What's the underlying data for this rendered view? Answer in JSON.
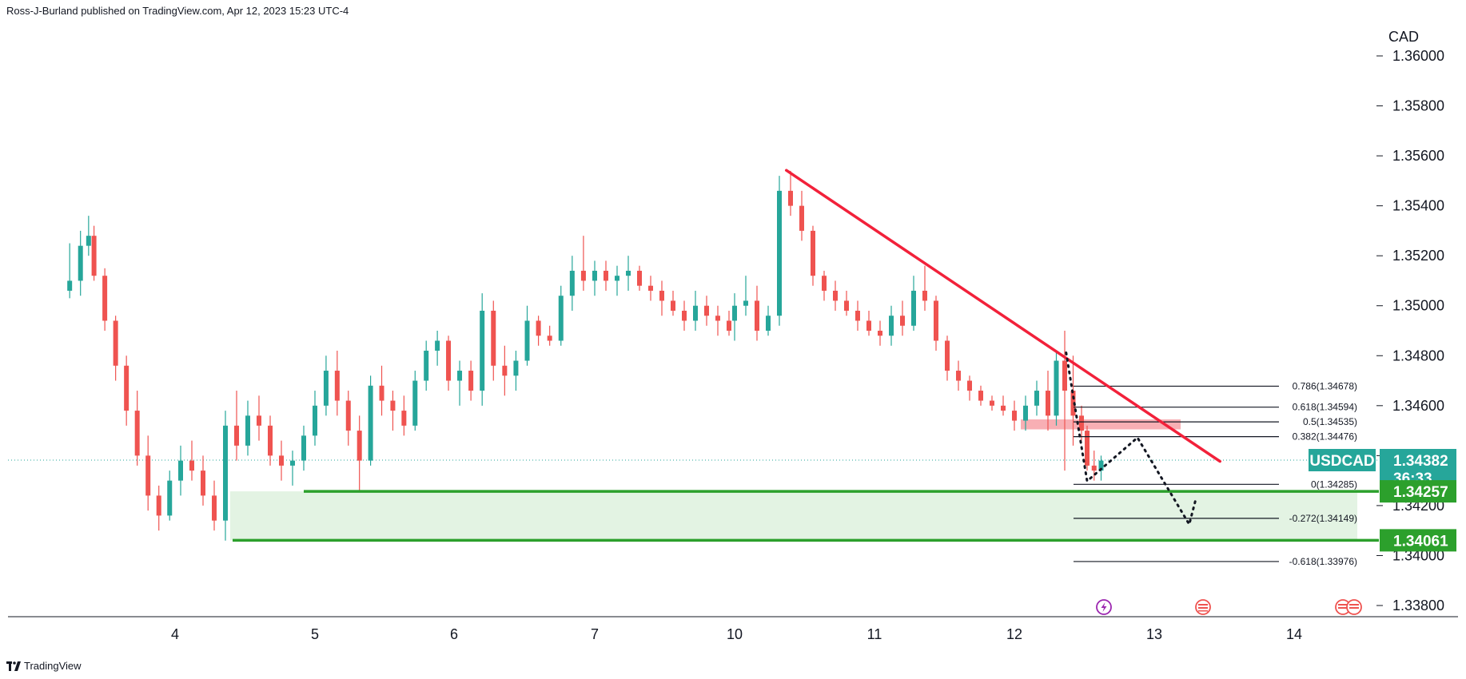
{
  "header": {
    "publisher_text": "Ross-J-Burland published on TradingView.com, Apr 12, 2023 15:23 UTC-4"
  },
  "footer": {
    "brand": "TradingView"
  },
  "colors": {
    "up": "#26a69a",
    "down": "#ef5350",
    "trendline": "#f2213a",
    "support": "#2ca02c",
    "zone": "#e3f3e3",
    "supply": "#f7a1a7"
  },
  "chart_data": {
    "type": "candlestick",
    "symbol_label": "USDCAD",
    "currency_label": "CAD",
    "y_ticks": [
      "1.36000",
      "1.35800",
      "1.35600",
      "1.35400",
      "1.35200",
      "1.35000",
      "1.34800",
      "1.34600",
      "1.34400",
      "1.34200",
      "1.34000",
      "1.33800"
    ],
    "x_ticks": [
      {
        "label": "4",
        "day": 4
      },
      {
        "label": "5",
        "day": 5
      },
      {
        "label": "6",
        "day": 6
      },
      {
        "label": "7",
        "day": 7
      },
      {
        "label": "10",
        "day": 10
      },
      {
        "label": "11",
        "day": 11
      },
      {
        "label": "12",
        "day": 12
      },
      {
        "label": "13",
        "day": 13
      },
      {
        "label": "14",
        "day": 14
      }
    ],
    "ylim": [
      1.337,
      1.3614
    ],
    "price_badges": [
      {
        "label": "USDCAD",
        "value": "1.34382",
        "countdown": "36:33",
        "price": 1.34382
      },
      {
        "label": "",
        "value": "1.34257",
        "price": 1.34257
      },
      {
        "label": "",
        "value": "1.34061",
        "price": 1.34061
      }
    ],
    "fib_levels": [
      {
        "label": "0.786(1.34678)",
        "price": 1.34678
      },
      {
        "label": "0.618(1.34594)",
        "price": 1.34594
      },
      {
        "label": "0.5(1.34535)",
        "price": 1.34535
      },
      {
        "label": "0.382(1.34476)",
        "price": 1.34476
      },
      {
        "label": "0(1.34285)",
        "price": 1.34285
      },
      {
        "label": "-0.272(1.34149)",
        "price": 1.34149
      },
      {
        "label": "-0.618(1.33976)",
        "price": 1.33976
      }
    ],
    "support_levels": [
      1.34257,
      1.34061
    ],
    "trendline": {
      "start": {
        "day": 10.37,
        "price": 1.35542
      },
      "end": {
        "day": 13.47,
        "price": 1.34377
      }
    },
    "projection": [
      {
        "day": 12.37,
        "price": 1.34812
      },
      {
        "day": 12.52,
        "price": 1.34298
      },
      {
        "day": 12.88,
        "price": 1.34472
      },
      {
        "day": 13.25,
        "price": 1.34125
      },
      {
        "day": 13.3,
        "price": 1.34232
      }
    ],
    "candles": [
      {
        "day": 3.22,
        "o": 1.3506,
        "h": 1.3525,
        "l": 1.3503,
        "c": 1.351
      },
      {
        "day": 3.3,
        "o": 1.351,
        "h": 1.353,
        "l": 1.3504,
        "c": 1.3524
      },
      {
        "day": 3.36,
        "o": 1.3524,
        "h": 1.3536,
        "l": 1.352,
        "c": 1.3528
      },
      {
        "day": 3.4,
        "o": 1.3528,
        "h": 1.3532,
        "l": 1.351,
        "c": 1.3512
      },
      {
        "day": 3.48,
        "o": 1.3512,
        "h": 1.3515,
        "l": 1.349,
        "c": 1.3494
      },
      {
        "day": 3.56,
        "o": 1.3494,
        "h": 1.3496,
        "l": 1.347,
        "c": 1.3476
      },
      {
        "day": 3.64,
        "o": 1.3476,
        "h": 1.348,
        "l": 1.3452,
        "c": 1.3458
      },
      {
        "day": 3.72,
        "o": 1.3458,
        "h": 1.3466,
        "l": 1.3436,
        "c": 1.344
      },
      {
        "day": 3.8,
        "o": 1.344,
        "h": 1.3448,
        "l": 1.3418,
        "c": 1.3424
      },
      {
        "day": 3.88,
        "o": 1.3424,
        "h": 1.3428,
        "l": 1.341,
        "c": 1.3416
      },
      {
        "day": 3.96,
        "o": 1.3416,
        "h": 1.3434,
        "l": 1.3414,
        "c": 1.343
      },
      {
        "day": 4.04,
        "o": 1.343,
        "h": 1.3444,
        "l": 1.3424,
        "c": 1.3438
      },
      {
        "day": 4.12,
        "o": 1.3438,
        "h": 1.3446,
        "l": 1.343,
        "c": 1.3434
      },
      {
        "day": 4.2,
        "o": 1.3434,
        "h": 1.344,
        "l": 1.342,
        "c": 1.3424
      },
      {
        "day": 4.28,
        "o": 1.3424,
        "h": 1.343,
        "l": 1.341,
        "c": 1.3414
      },
      {
        "day": 4.36,
        "o": 1.3414,
        "h": 1.3458,
        "l": 1.3406,
        "c": 1.3452
      },
      {
        "day": 4.44,
        "o": 1.3452,
        "h": 1.3466,
        "l": 1.3438,
        "c": 1.3444
      },
      {
        "day": 4.52,
        "o": 1.3444,
        "h": 1.3462,
        "l": 1.344,
        "c": 1.3456
      },
      {
        "day": 4.6,
        "o": 1.3456,
        "h": 1.3464,
        "l": 1.3446,
        "c": 1.3452
      },
      {
        "day": 4.68,
        "o": 1.3452,
        "h": 1.3456,
        "l": 1.3436,
        "c": 1.344
      },
      {
        "day": 4.76,
        "o": 1.344,
        "h": 1.3446,
        "l": 1.343,
        "c": 1.3436
      },
      {
        "day": 4.84,
        "o": 1.3436,
        "h": 1.3442,
        "l": 1.3428,
        "c": 1.3438
      },
      {
        "day": 4.92,
        "o": 1.3438,
        "h": 1.3452,
        "l": 1.3434,
        "c": 1.3448
      },
      {
        "day": 5.0,
        "o": 1.3448,
        "h": 1.3466,
        "l": 1.3444,
        "c": 1.346
      },
      {
        "day": 5.08,
        "o": 1.346,
        "h": 1.348,
        "l": 1.3456,
        "c": 1.3474
      },
      {
        "day": 5.16,
        "o": 1.3474,
        "h": 1.3482,
        "l": 1.3456,
        "c": 1.3462
      },
      {
        "day": 5.24,
        "o": 1.3462,
        "h": 1.3466,
        "l": 1.3444,
        "c": 1.345
      },
      {
        "day": 5.32,
        "o": 1.345,
        "h": 1.3456,
        "l": 1.3426,
        "c": 1.3438
      },
      {
        "day": 5.4,
        "o": 1.3438,
        "h": 1.3472,
        "l": 1.3436,
        "c": 1.3468
      },
      {
        "day": 5.48,
        "o": 1.3468,
        "h": 1.3476,
        "l": 1.3456,
        "c": 1.3462
      },
      {
        "day": 5.56,
        "o": 1.3462,
        "h": 1.3466,
        "l": 1.345,
        "c": 1.3458
      },
      {
        "day": 5.64,
        "o": 1.3458,
        "h": 1.3464,
        "l": 1.3448,
        "c": 1.3452
      },
      {
        "day": 5.72,
        "o": 1.3452,
        "h": 1.3474,
        "l": 1.345,
        "c": 1.347
      },
      {
        "day": 5.8,
        "o": 1.347,
        "h": 1.3486,
        "l": 1.3466,
        "c": 1.3482
      },
      {
        "day": 5.88,
        "o": 1.3482,
        "h": 1.349,
        "l": 1.3476,
        "c": 1.3486
      },
      {
        "day": 5.96,
        "o": 1.3486,
        "h": 1.3488,
        "l": 1.3466,
        "c": 1.347
      },
      {
        "day": 6.04,
        "o": 1.347,
        "h": 1.3478,
        "l": 1.346,
        "c": 1.3474
      },
      {
        "day": 6.12,
        "o": 1.3474,
        "h": 1.3478,
        "l": 1.3462,
        "c": 1.3466
      },
      {
        "day": 6.2,
        "o": 1.3466,
        "h": 1.3505,
        "l": 1.346,
        "c": 1.3498
      },
      {
        "day": 6.28,
        "o": 1.3498,
        "h": 1.3502,
        "l": 1.347,
        "c": 1.3476
      },
      {
        "day": 6.36,
        "o": 1.3476,
        "h": 1.3484,
        "l": 1.3464,
        "c": 1.3472
      },
      {
        "day": 6.44,
        "o": 1.3472,
        "h": 1.3482,
        "l": 1.3466,
        "c": 1.3478
      },
      {
        "day": 6.52,
        "o": 1.3478,
        "h": 1.35,
        "l": 1.3476,
        "c": 1.3494
      },
      {
        "day": 6.6,
        "o": 1.3494,
        "h": 1.3496,
        "l": 1.3484,
        "c": 1.3488
      },
      {
        "day": 6.68,
        "o": 1.3488,
        "h": 1.3492,
        "l": 1.3484,
        "c": 1.3486
      },
      {
        "day": 6.76,
        "o": 1.3486,
        "h": 1.3508,
        "l": 1.3484,
        "c": 1.3504
      },
      {
        "day": 6.84,
        "o": 1.3504,
        "h": 1.352,
        "l": 1.3498,
        "c": 1.3514
      },
      {
        "day": 6.92,
        "o": 1.3514,
        "h": 1.3528,
        "l": 1.3506,
        "c": 1.351
      },
      {
        "day": 7.0,
        "o": 1.351,
        "h": 1.3518,
        "l": 1.3504,
        "c": 1.3514
      },
      {
        "day": 7.08,
        "o": 1.3514,
        "h": 1.3518,
        "l": 1.3506,
        "c": 1.351
      },
      {
        "day": 7.16,
        "o": 1.351,
        "h": 1.3516,
        "l": 1.3504,
        "c": 1.3512
      },
      {
        "day": 7.24,
        "o": 1.3512,
        "h": 1.352,
        "l": 1.3506,
        "c": 1.3514
      },
      {
        "day": 7.32,
        "o": 1.3514,
        "h": 1.3516,
        "l": 1.3506,
        "c": 1.3508
      },
      {
        "day": 7.4,
        "o": 1.3508,
        "h": 1.3512,
        "l": 1.3502,
        "c": 1.3506
      },
      {
        "day": 7.48,
        "o": 1.3506,
        "h": 1.351,
        "l": 1.3496,
        "c": 1.3502
      },
      {
        "day": 7.56,
        "o": 1.3502,
        "h": 1.3506,
        "l": 1.3496,
        "c": 1.3498
      },
      {
        "day": 7.64,
        "o": 1.3498,
        "h": 1.3502,
        "l": 1.349,
        "c": 1.3494
      },
      {
        "day": 7.72,
        "o": 1.3494,
        "h": 1.3506,
        "l": 1.349,
        "c": 1.35
      },
      {
        "day": 7.8,
        "o": 1.35,
        "h": 1.3504,
        "l": 1.3492,
        "c": 1.3496
      },
      {
        "day": 7.88,
        "o": 1.3496,
        "h": 1.35,
        "l": 1.3488,
        "c": 1.3494
      },
      {
        "day": 7.96,
        "o": 1.3494,
        "h": 1.3498,
        "l": 1.3488,
        "c": 1.349
      },
      {
        "day": 10.0,
        "o": 1.3494,
        "h": 1.3505,
        "l": 1.3486,
        "c": 1.35
      },
      {
        "day": 10.08,
        "o": 1.35,
        "h": 1.3512,
        "l": 1.3496,
        "c": 1.3502
      },
      {
        "day": 10.16,
        "o": 1.3502,
        "h": 1.3508,
        "l": 1.3486,
        "c": 1.349
      },
      {
        "day": 10.24,
        "o": 1.349,
        "h": 1.35,
        "l": 1.3488,
        "c": 1.3496
      },
      {
        "day": 10.32,
        "o": 1.3496,
        "h": 1.3552,
        "l": 1.3492,
        "c": 1.3546
      },
      {
        "day": 10.4,
        "o": 1.3546,
        "h": 1.3554,
        "l": 1.3536,
        "c": 1.354
      },
      {
        "day": 10.48,
        "o": 1.354,
        "h": 1.3546,
        "l": 1.3526,
        "c": 1.353
      },
      {
        "day": 10.56,
        "o": 1.353,
        "h": 1.3532,
        "l": 1.3508,
        "c": 1.3512
      },
      {
        "day": 10.64,
        "o": 1.3512,
        "h": 1.3514,
        "l": 1.3502,
        "c": 1.3506
      },
      {
        "day": 10.72,
        "o": 1.3506,
        "h": 1.351,
        "l": 1.3498,
        "c": 1.3502
      },
      {
        "day": 10.8,
        "o": 1.3502,
        "h": 1.3506,
        "l": 1.3496,
        "c": 1.3498
      },
      {
        "day": 10.88,
        "o": 1.3498,
        "h": 1.3502,
        "l": 1.349,
        "c": 1.3494
      },
      {
        "day": 10.96,
        "o": 1.3494,
        "h": 1.3498,
        "l": 1.3488,
        "c": 1.349
      },
      {
        "day": 11.04,
        "o": 1.349,
        "h": 1.3494,
        "l": 1.3484,
        "c": 1.3488
      },
      {
        "day": 11.12,
        "o": 1.3488,
        "h": 1.35,
        "l": 1.3484,
        "c": 1.3496
      },
      {
        "day": 11.2,
        "o": 1.3496,
        "h": 1.3502,
        "l": 1.3488,
        "c": 1.3492
      },
      {
        "day": 11.28,
        "o": 1.3492,
        "h": 1.3512,
        "l": 1.349,
        "c": 1.3506
      },
      {
        "day": 11.36,
        "o": 1.3506,
        "h": 1.3516,
        "l": 1.3498,
        "c": 1.3502
      },
      {
        "day": 11.44,
        "o": 1.3502,
        "h": 1.3504,
        "l": 1.3482,
        "c": 1.3486
      },
      {
        "day": 11.52,
        "o": 1.3486,
        "h": 1.3488,
        "l": 1.347,
        "c": 1.3474
      },
      {
        "day": 11.6,
        "o": 1.3474,
        "h": 1.3478,
        "l": 1.3466,
        "c": 1.347
      },
      {
        "day": 11.68,
        "o": 1.347,
        "h": 1.3472,
        "l": 1.3462,
        "c": 1.3466
      },
      {
        "day": 11.76,
        "o": 1.3466,
        "h": 1.3468,
        "l": 1.346,
        "c": 1.3462
      },
      {
        "day": 11.84,
        "o": 1.3462,
        "h": 1.3464,
        "l": 1.3458,
        "c": 1.346
      },
      {
        "day": 11.92,
        "o": 1.346,
        "h": 1.3464,
        "l": 1.3456,
        "c": 1.3458
      },
      {
        "day": 12.0,
        "o": 1.3458,
        "h": 1.3462,
        "l": 1.345,
        "c": 1.3454
      },
      {
        "day": 12.08,
        "o": 1.3454,
        "h": 1.3464,
        "l": 1.345,
        "c": 1.346
      },
      {
        "day": 12.16,
        "o": 1.346,
        "h": 1.347,
        "l": 1.3456,
        "c": 1.3466
      },
      {
        "day": 12.24,
        "o": 1.3466,
        "h": 1.3474,
        "l": 1.345,
        "c": 1.3456
      },
      {
        "day": 12.3,
        "o": 1.3456,
        "h": 1.3482,
        "l": 1.3452,
        "c": 1.3478
      },
      {
        "day": 12.36,
        "o": 1.3478,
        "h": 1.349,
        "l": 1.3434,
        "c": 1.3466
      },
      {
        "day": 12.42,
        "o": 1.3466,
        "h": 1.348,
        "l": 1.3444,
        "c": 1.3456
      },
      {
        "day": 12.48,
        "o": 1.3456,
        "h": 1.346,
        "l": 1.3446,
        "c": 1.345
      },
      {
        "day": 12.52,
        "o": 1.345,
        "h": 1.3452,
        "l": 1.3434,
        "c": 1.3436
      },
      {
        "day": 12.57,
        "o": 1.3436,
        "h": 1.3442,
        "l": 1.343,
        "c": 1.3434
      },
      {
        "day": 12.62,
        "o": 1.3434,
        "h": 1.344,
        "l": 1.343,
        "c": 1.3438
      }
    ]
  }
}
